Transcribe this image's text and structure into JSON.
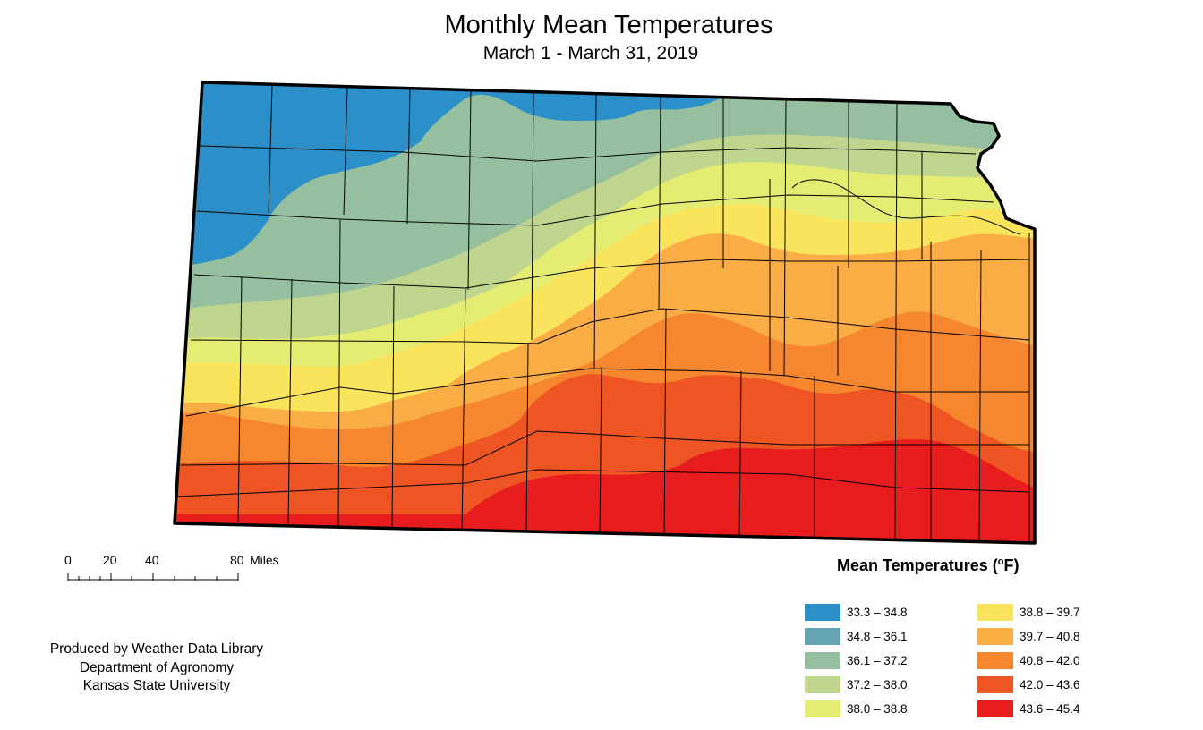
{
  "map": {
    "title": "Monthly Mean Temperatures",
    "subtitle": "March 1 - March 31, 2019",
    "region": "Kansas"
  },
  "scale_bar": {
    "ticks": [
      "0",
      "20",
      "40",
      "80"
    ],
    "units_label": "Miles"
  },
  "credits": {
    "line1": "Produced by Weather Data Library",
    "line2": "Department of Agronomy",
    "line3": "Kansas State University"
  },
  "legend": {
    "title": "Mean Temperatures (",
    "unit_sup": "o",
    "title_end": "F)",
    "items": [
      {
        "label": "33.3 – 34.8",
        "color": "#2b8fc9"
      },
      {
        "label": "34.8 – 36.1",
        "color": "#65a4b3"
      },
      {
        "label": "36.1 – 37.2",
        "color": "#95bf9e"
      },
      {
        "label": "37.2 – 38.0",
        "color": "#c0d68e"
      },
      {
        "label": "38.0 – 38.8",
        "color": "#e4ec72"
      },
      {
        "label": "38.8 – 39.7",
        "color": "#fae45c"
      },
      {
        "label": "39.7 – 40.8",
        "color": "#faad44"
      },
      {
        "label": "40.8 – 42.0",
        "color": "#f7872f"
      },
      {
        "label": "42.0 – 43.6",
        "color": "#ee5522"
      },
      {
        "label": "43.6 – 45.4",
        "color": "#e81c1c"
      }
    ]
  }
}
